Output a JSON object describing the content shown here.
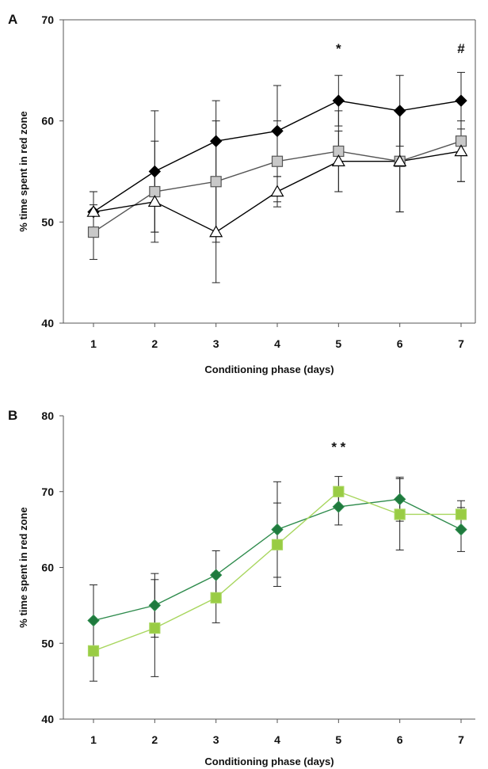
{
  "chart_data": [
    {
      "panel": "A",
      "type": "line",
      "xlabel": "Conditioning phase (days)",
      "ylabel": "% time spent in red zone",
      "x": [
        1,
        2,
        3,
        4,
        5,
        6,
        7
      ],
      "ylim": [
        40,
        70
      ],
      "yticks": [
        40,
        50,
        60,
        70
      ],
      "series": [
        {
          "marker": "diamond",
          "color": "#000000",
          "fill": "#000000",
          "values": [
            51,
            55,
            58,
            59,
            62,
            61,
            62
          ],
          "error": [
            2,
            6,
            4,
            4.5,
            2.5,
            3.5,
            2.8
          ]
        },
        {
          "marker": "square",
          "color": "#555555",
          "fill": "#c8c8c8",
          "values": [
            49,
            53,
            54,
            56,
            57,
            56,
            58
          ],
          "error": [
            2.7,
            5,
            6,
            4,
            4,
            5,
            4
          ]
        },
        {
          "marker": "triangle",
          "color": "#000000",
          "fill": "#ffffff",
          "values": [
            51,
            52,
            49,
            53,
            56,
            56,
            57
          ],
          "error": [
            2,
            3,
            5,
            1.5,
            3,
            5,
            3
          ]
        }
      ],
      "annotations": [
        {
          "x": 5,
          "text": "*"
        },
        {
          "x": 7,
          "text": "#"
        }
      ]
    },
    {
      "panel": "B",
      "type": "line",
      "xlabel": "Conditioning phase (days)",
      "ylabel": "% time spent in red zone",
      "x": [
        1,
        2,
        3,
        4,
        5,
        6,
        7
      ],
      "ylim": [
        40,
        80
      ],
      "yticks": [
        40,
        50,
        60,
        70,
        80
      ],
      "series": [
        {
          "marker": "diamond",
          "color": "#2e8b4c",
          "fill": "#1f7a3e",
          "values": [
            53,
            55,
            59,
            65,
            68,
            69,
            65
          ],
          "error": [
            4.7,
            4.2,
            3.2,
            6.3,
            2.4,
            2.9,
            2.9
          ]
        },
        {
          "marker": "square",
          "color": "#a8d65e",
          "fill": "#99cc44",
          "values": [
            49,
            52,
            56,
            63,
            70,
            67,
            67
          ],
          "error": [
            4,
            6.4,
            3.3,
            5.5,
            2,
            4.7,
            1.8
          ]
        }
      ],
      "annotations": [
        {
          "x": 5,
          "text": "* *"
        }
      ]
    }
  ]
}
